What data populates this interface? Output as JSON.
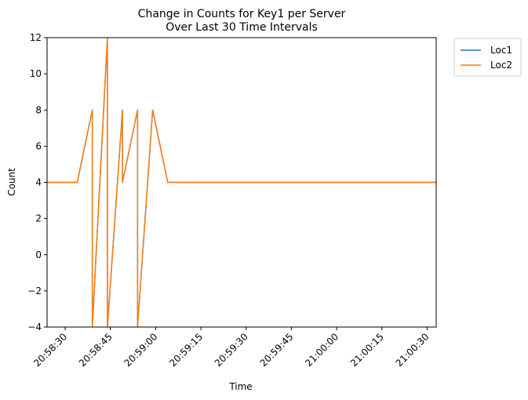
{
  "chart_data": {
    "type": "line",
    "title": "Change in Counts for Key1 per Server",
    "subtitle": "Over Last 30 Time Intervals",
    "xlabel": "Time",
    "ylabel": "Count",
    "xlim": [
      "20:58:24",
      "21:00:33"
    ],
    "ylim": [
      -4,
      12
    ],
    "x_ticks": [
      "20:58:30",
      "20:58:45",
      "20:59:00",
      "20:59:15",
      "20:59:30",
      "20:59:45",
      "21:00:00",
      "21:00:15",
      "21:00:30"
    ],
    "y_ticks": [
      "−4",
      "−2",
      "0",
      "2",
      "4",
      "6",
      "8",
      "10",
      "12"
    ],
    "y_tick_values": [
      -4,
      -2,
      0,
      2,
      4,
      6,
      8,
      10,
      12
    ],
    "grid": false,
    "legend_position": "outside-top-right",
    "x": [
      "20:58:24",
      "20:58:34",
      "20:58:39",
      "20:58:39",
      "20:58:44",
      "20:58:44",
      "20:58:49",
      "20:58:49",
      "20:58:54",
      "20:58:54",
      "20:58:59",
      "20:59:04",
      "21:00:33"
    ],
    "series": [
      {
        "name": "Loc1",
        "color": "#1f77b4",
        "values": [
          4,
          4,
          8,
          -4,
          12,
          -4,
          8,
          4,
          8,
          -4,
          8,
          4,
          4
        ]
      },
      {
        "name": "Loc2",
        "color": "#ff7f0e",
        "values": [
          4,
          4,
          8,
          -4,
          12,
          -4,
          8,
          4,
          8,
          -4,
          8,
          4,
          4
        ]
      }
    ]
  }
}
